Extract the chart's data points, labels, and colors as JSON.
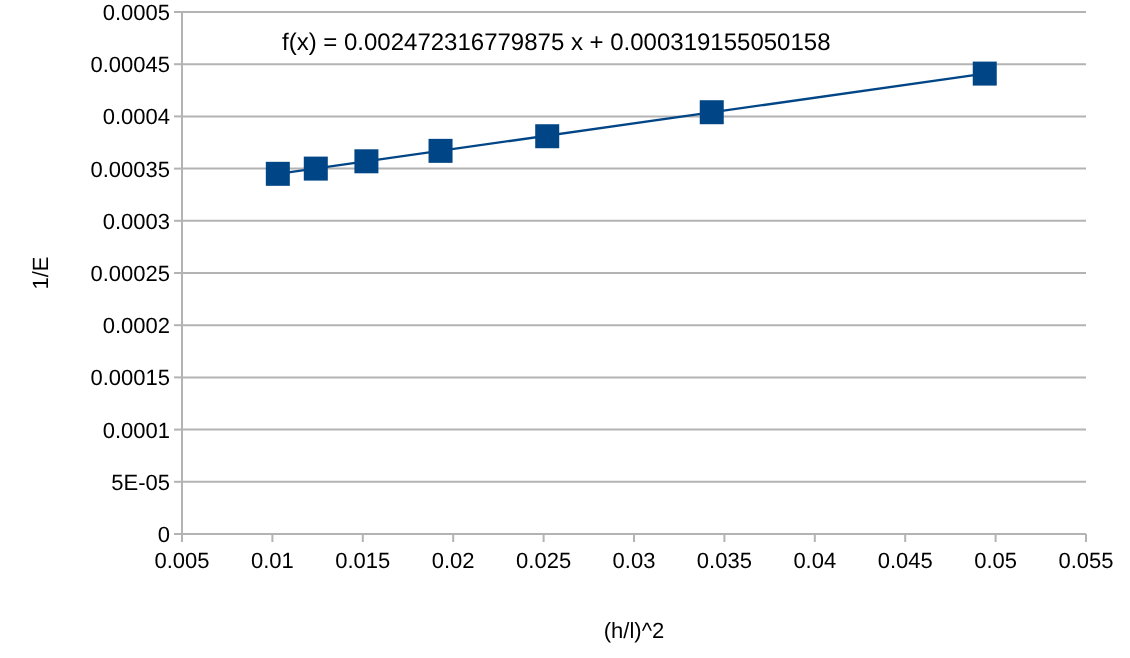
{
  "chart_data": {
    "type": "scatter",
    "xlabel": "(h/l)^2",
    "ylabel": "1/E",
    "series": [
      {
        "color": "#004586",
        "marker": "square",
        "x": [
          0.0103,
          0.0124,
          0.0152,
          0.0193,
          0.0252,
          0.0343,
          0.0494
        ],
        "values": [
          0.000345,
          0.00035,
          0.000357,
          0.000367,
          0.000381,
          0.000404,
          0.000441
        ]
      },
      {
        "type": "line",
        "color": "#004586",
        "marker": "none",
        "line_style": "solid",
        "x": [
          0.0103,
          0.0494
        ],
        "values": [
          0.000345,
          0.000441
        ]
      }
    ],
    "annotations": [
      "f(x) = 0.002472316779875 x + 0.000319155050158"
    ],
    "xlim": [
      0.005,
      0.055
    ],
    "xticks": [
      0.005,
      0.01,
      0.015,
      0.02,
      0.025,
      0.03,
      0.035,
      0.04,
      0.045,
      0.05,
      0.055
    ],
    "ylim": [
      0,
      0.0005
    ],
    "yticks": [
      0,
      {
        "value": 5e-05,
        "label": "5E-05"
      },
      0.0001,
      0.00015,
      0.0002,
      0.00025,
      0.0003,
      0.00035,
      0.0004,
      0.00045,
      0.0005
    ],
    "grid": "y"
  }
}
